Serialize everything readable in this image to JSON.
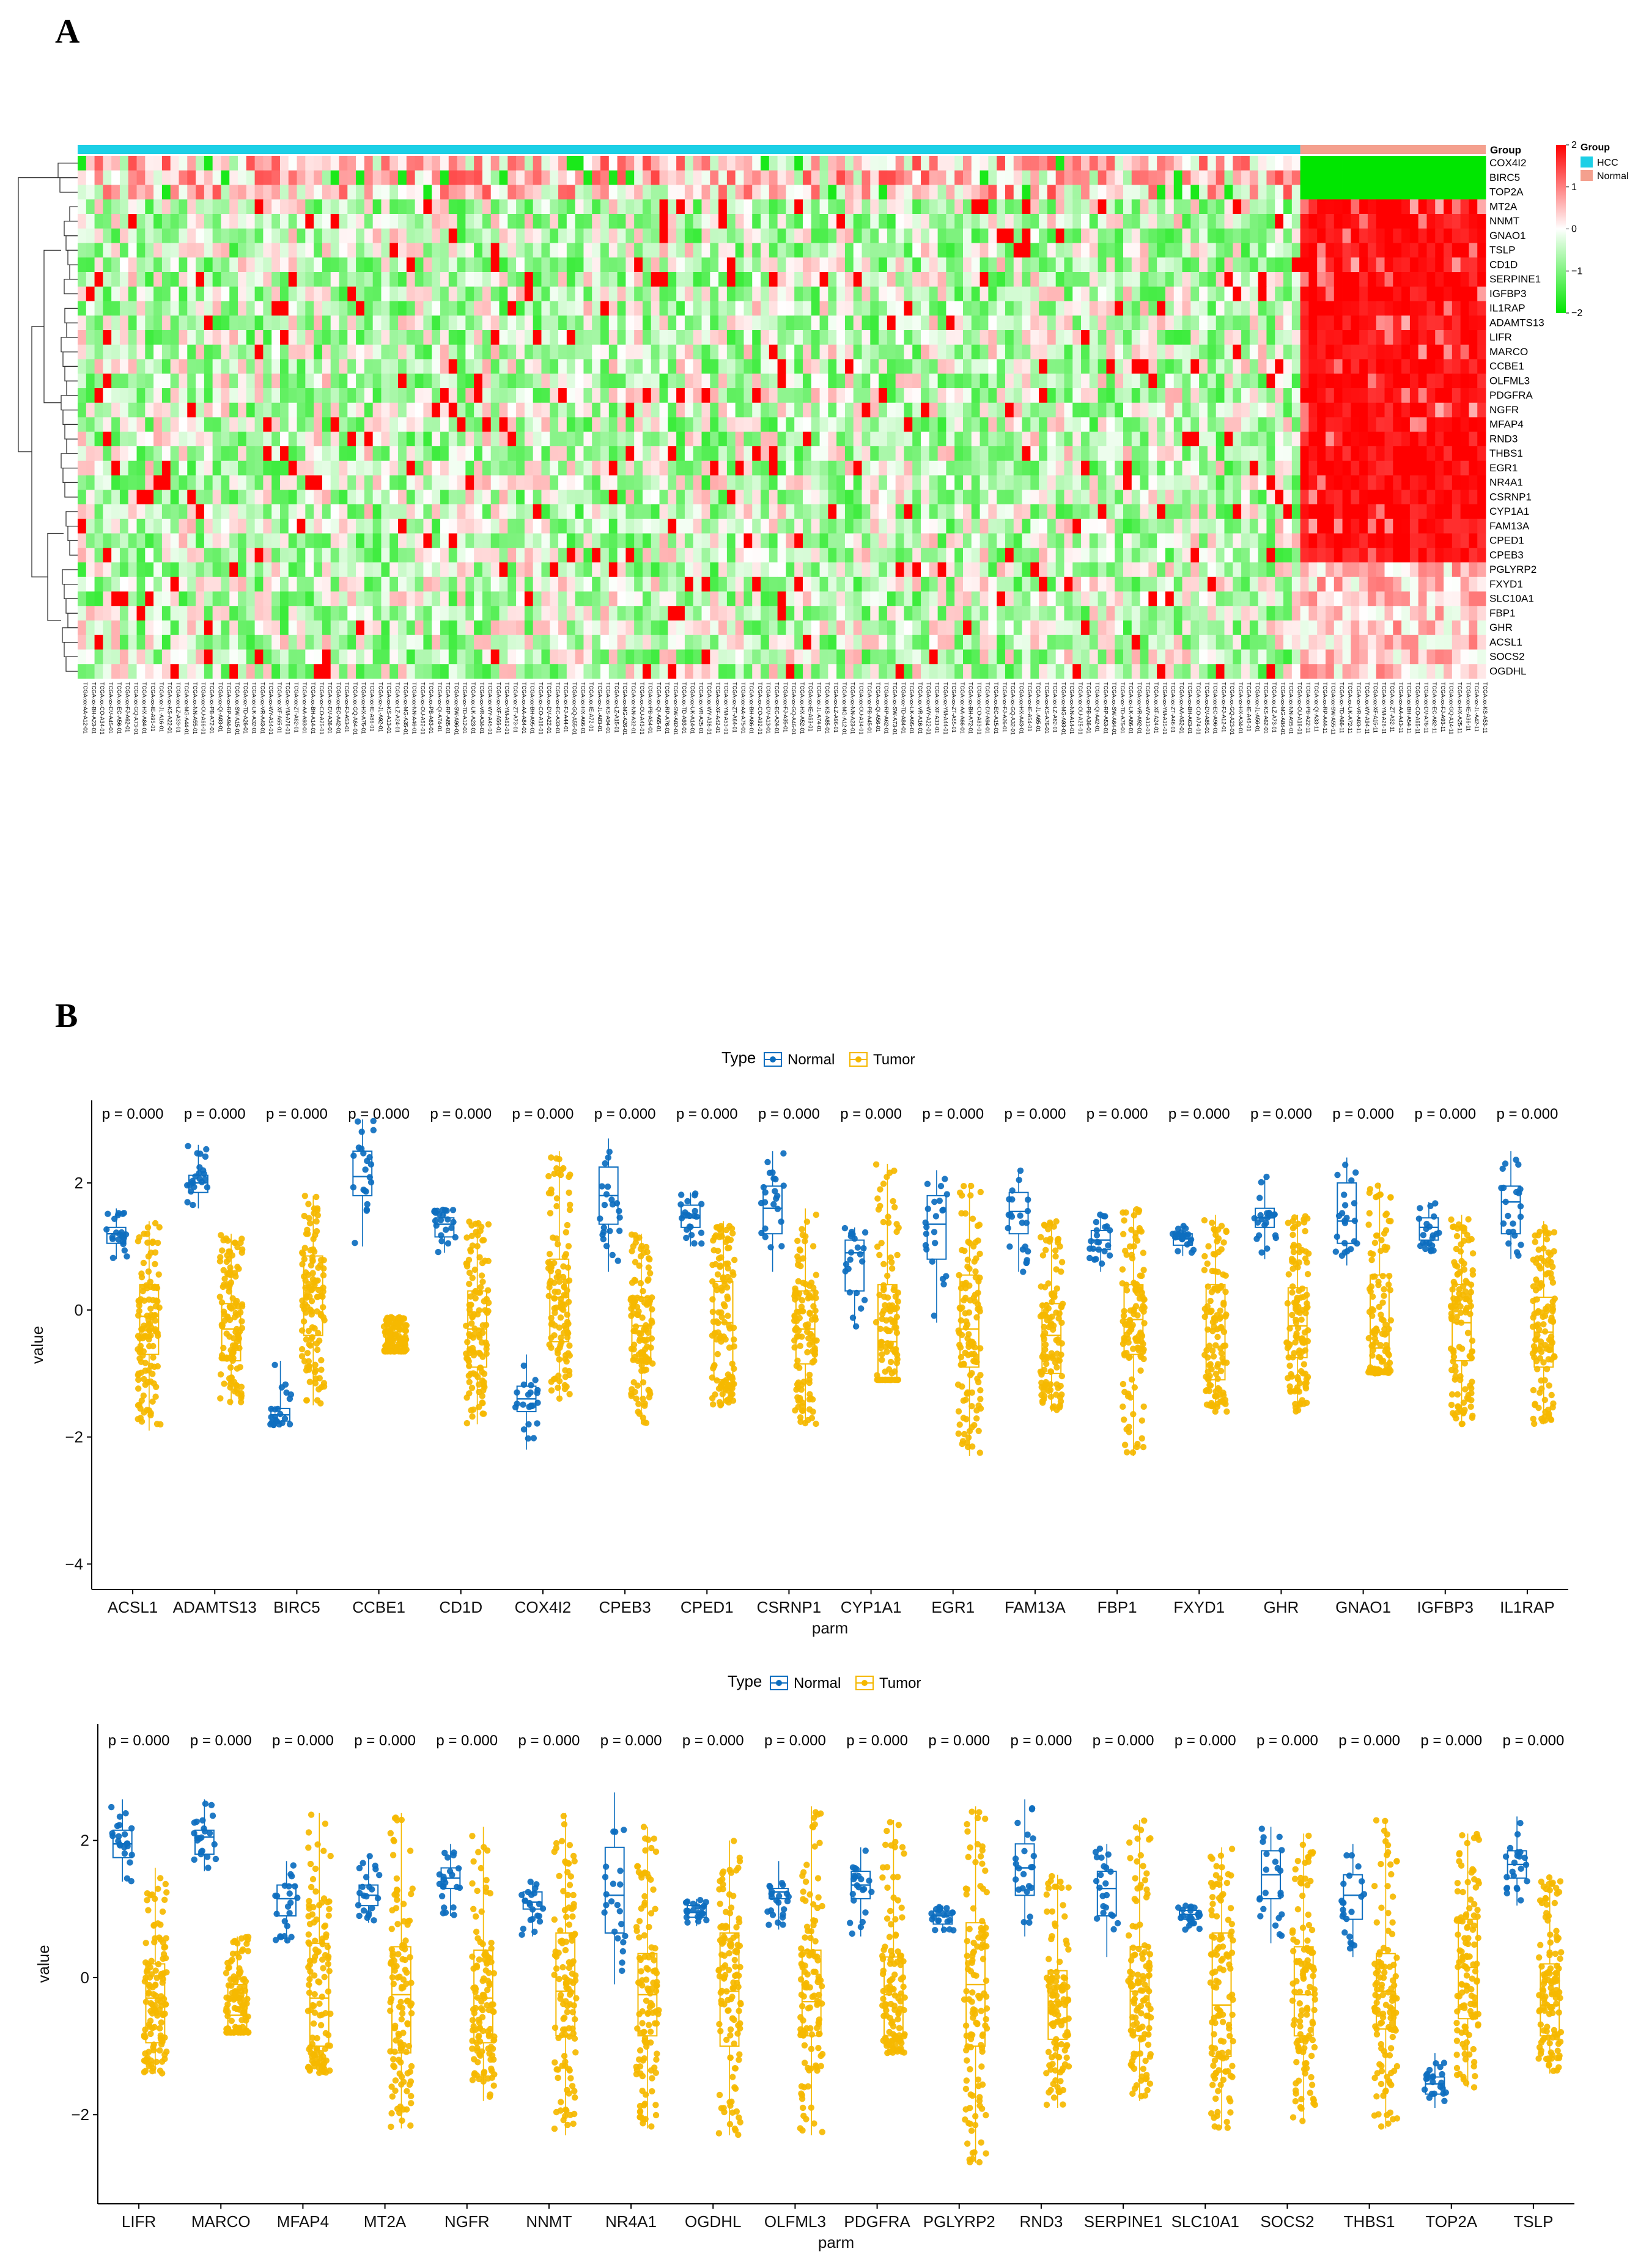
{
  "panels": {
    "a_label": "A",
    "b_label": "B"
  },
  "heatmap": {
    "genes": [
      "COX4I2",
      "BIRC5",
      "TOP2A",
      "MT2A",
      "NNMT",
      "GNAO1",
      "TSLP",
      "CD1D",
      "SERPINE1",
      "IGFBP3",
      "IL1RAP",
      "ADAMTS13",
      "LIFR",
      "MARCO",
      "CCBE1",
      "OLFML3",
      "PDGFRA",
      "NGFR",
      "MFAP4",
      "RND3",
      "THBS1",
      "EGR1",
      "NR4A1",
      "CSRNP1",
      "CYP1A1",
      "FAM13A",
      "CPED1",
      "CPEB3",
      "PGLYRP2",
      "FXYD1",
      "SLC10A1",
      "FBP1",
      "GHR",
      "ACSL1",
      "SOCS2",
      "OGDHL"
    ],
    "annotation_label": "Group",
    "group_legend_title": "Group",
    "groups": [
      {
        "name": "HCC",
        "color": "#1ccfe6"
      },
      {
        "name": "Normal",
        "color": "#f4a08e"
      }
    ],
    "n_tumor_columns": 145,
    "n_normal_columns": 22,
    "color_scale": {
      "min": -2,
      "max": 2,
      "ticks": [
        "2",
        "1",
        "0",
        "−1",
        "−2"
      ],
      "low": "#00e600",
      "mid": "#ffffff",
      "high": "#ff0000"
    },
    "sample_label_prefix": "TCGA-"
  },
  "chart_data": [
    {
      "type": "box",
      "legend_title": "Type",
      "legend_position": "top",
      "series": [
        {
          "name": "Normal",
          "color": "#0d6ebf"
        },
        {
          "name": "Tumor",
          "color": "#f5b800"
        }
      ],
      "xlabel": "parm",
      "ylabel": "value",
      "ylim": [
        -4.4,
        3.3
      ],
      "yticks": [
        -4,
        -2,
        0,
        2
      ],
      "pvalue_label": "p = 0.000",
      "categories": [
        "ACSL1",
        "ADAMTS13",
        "BIRC5",
        "CCBE1",
        "CD1D",
        "COX4I2",
        "CPEB3",
        "CPED1",
        "CSRNP1",
        "CYP1A1",
        "EGR1",
        "FAM13A",
        "FBP1",
        "FXYD1",
        "GHR",
        "GNAO1",
        "IGFBP3",
        "IL1RAP"
      ],
      "normal": [
        {
          "q1": 1.05,
          "med": 1.2,
          "q3": 1.3,
          "lo": 0.8,
          "hi": 1.6
        },
        {
          "q1": 1.85,
          "med": 2.0,
          "q3": 2.12,
          "lo": 1.6,
          "hi": 2.6
        },
        {
          "q1": -1.75,
          "med": -1.65,
          "q3": -1.55,
          "lo": -1.85,
          "hi": -0.8
        },
        {
          "q1": 1.8,
          "med": 2.1,
          "q3": 2.5,
          "lo": 1.0,
          "hi": 3.0
        },
        {
          "q1": 1.15,
          "med": 1.35,
          "q3": 1.45,
          "lo": 0.9,
          "hi": 1.6
        },
        {
          "q1": -1.6,
          "med": -1.4,
          "q3": -1.2,
          "lo": -2.2,
          "hi": -0.7
        },
        {
          "q1": 1.35,
          "med": 1.8,
          "q3": 2.25,
          "lo": 0.6,
          "hi": 2.7
        },
        {
          "q1": 1.3,
          "med": 1.45,
          "q3": 1.65,
          "lo": 1.0,
          "hi": 1.85
        },
        {
          "q1": 1.2,
          "med": 1.6,
          "q3": 1.95,
          "lo": 0.6,
          "hi": 2.5
        },
        {
          "q1": 0.3,
          "med": 0.9,
          "q3": 1.1,
          "lo": -0.3,
          "hi": 1.3
        },
        {
          "q1": 0.8,
          "med": 1.35,
          "q3": 1.8,
          "lo": -0.2,
          "hi": 2.2
        },
        {
          "q1": 1.2,
          "med": 1.55,
          "q3": 1.85,
          "lo": 0.6,
          "hi": 2.2
        },
        {
          "q1": 0.95,
          "med": 1.1,
          "q3": 1.25,
          "lo": 0.6,
          "hi": 1.55
        },
        {
          "q1": 1.02,
          "med": 1.12,
          "q3": 1.2,
          "lo": 0.85,
          "hi": 1.35
        },
        {
          "q1": 1.3,
          "med": 1.45,
          "q3": 1.6,
          "lo": 0.8,
          "hi": 2.1
        },
        {
          "q1": 1.05,
          "med": 1.4,
          "q3": 2.0,
          "lo": 0.7,
          "hi": 2.4
        },
        {
          "q1": 1.1,
          "med": 1.3,
          "q3": 1.45,
          "lo": 0.9,
          "hi": 1.7
        },
        {
          "q1": 1.2,
          "med": 1.7,
          "q3": 1.95,
          "lo": 0.8,
          "hi": 2.5
        }
      ],
      "tumor": [
        {
          "q1": -0.7,
          "med": -0.1,
          "q3": 0.4,
          "lo": -1.9,
          "hi": 1.4
        },
        {
          "q1": -0.8,
          "med": -0.3,
          "q3": 0.1,
          "lo": -1.5,
          "hi": 1.2
        },
        {
          "q1": -0.4,
          "med": 0.35,
          "q3": 0.85,
          "lo": -1.5,
          "hi": 1.8
        },
        {
          "q1": -0.65,
          "med": -0.45,
          "q3": -0.3,
          "lo": -0.65,
          "hi": -0.1
        },
        {
          "q1": -0.9,
          "med": -0.3,
          "q3": 0.3,
          "lo": -1.8,
          "hi": 1.4
        },
        {
          "q1": -0.5,
          "med": 0.2,
          "q3": 0.8,
          "lo": -1.4,
          "hi": 2.5
        },
        {
          "q1": -0.8,
          "med": -0.25,
          "q3": 0.2,
          "lo": -1.8,
          "hi": 1.2
        },
        {
          "q1": -1.1,
          "med": -0.2,
          "q3": 0.45,
          "lo": -1.5,
          "hi": 1.4
        },
        {
          "q1": -0.85,
          "med": -0.3,
          "q3": 0.3,
          "lo": -1.8,
          "hi": 1.6
        },
        {
          "q1": -1.1,
          "med": -0.5,
          "q3": 0.4,
          "lo": -1.1,
          "hi": 2.3
        },
        {
          "q1": -0.9,
          "med": -0.3,
          "q3": 0.55,
          "lo": -2.3,
          "hi": 2.0
        },
        {
          "q1": -1.0,
          "med": -0.4,
          "q3": 0.1,
          "lo": -1.6,
          "hi": 1.4
        },
        {
          "q1": -0.7,
          "med": -0.15,
          "q3": 0.4,
          "lo": -2.3,
          "hi": 1.6
        },
        {
          "q1": -1.1,
          "med": -0.3,
          "q3": 0.4,
          "lo": -1.6,
          "hi": 1.5
        },
        {
          "q1": -0.75,
          "med": -0.25,
          "q3": 0.35,
          "lo": -1.6,
          "hi": 1.5
        },
        {
          "q1": -0.95,
          "med": -0.6,
          "q3": 0.55,
          "lo": -1.0,
          "hi": 2.0
        },
        {
          "q1": -0.8,
          "med": -0.2,
          "q3": 0.4,
          "lo": -1.8,
          "hi": 1.5
        },
        {
          "q1": -0.9,
          "med": -0.35,
          "q3": 0.2,
          "lo": -1.8,
          "hi": 1.4
        }
      ]
    },
    {
      "type": "box",
      "legend_title": "Type",
      "legend_position": "top",
      "series": [
        {
          "name": "Normal",
          "color": "#0d6ebf"
        },
        {
          "name": "Tumor",
          "color": "#f5b800"
        }
      ],
      "xlabel": "parm",
      "ylabel": "value",
      "ylim": [
        -3.3,
        3.7
      ],
      "yticks": [
        -2,
        0,
        2
      ],
      "pvalue_label": "p = 0.000",
      "categories": [
        "LIFR",
        "MARCO",
        "MFAP4",
        "MT2A",
        "NGFR",
        "NNMT",
        "NR4A1",
        "OGDHL",
        "OLFML3",
        "PDGFRA",
        "PGLYRP2",
        "RND3",
        "SERPINE1",
        "SLC10A1",
        "SOCS2",
        "THBS1",
        "TOP2A",
        "TSLP"
      ],
      "normal": [
        {
          "q1": 1.75,
          "med": 1.95,
          "q3": 2.15,
          "lo": 1.4,
          "hi": 2.6
        },
        {
          "q1": 1.8,
          "med": 2.05,
          "q3": 2.15,
          "lo": 1.55,
          "hi": 2.6
        },
        {
          "q1": 0.9,
          "med": 1.15,
          "q3": 1.35,
          "lo": 0.5,
          "hi": 1.7
        },
        {
          "q1": 1.05,
          "med": 1.2,
          "q3": 1.35,
          "lo": 0.8,
          "hi": 1.8
        },
        {
          "q1": 1.3,
          "med": 1.45,
          "q3": 1.6,
          "lo": 0.9,
          "hi": 1.95
        },
        {
          "q1": 1.0,
          "med": 1.1,
          "q3": 1.25,
          "lo": 0.6,
          "hi": 1.4
        },
        {
          "q1": 0.65,
          "med": 1.2,
          "q3": 1.9,
          "lo": -0.1,
          "hi": 2.7
        },
        {
          "q1": 0.88,
          "med": 0.95,
          "q3": 1.05,
          "lo": 0.75,
          "hi": 1.15
        },
        {
          "q1": 1.15,
          "med": 1.25,
          "q3": 1.3,
          "lo": 0.7,
          "hi": 1.7
        },
        {
          "q1": 1.15,
          "med": 1.35,
          "q3": 1.55,
          "lo": 0.6,
          "hi": 1.9
        },
        {
          "q1": 0.78,
          "med": 0.9,
          "q3": 0.97,
          "lo": 0.65,
          "hi": 1.05
        },
        {
          "q1": 1.2,
          "med": 1.6,
          "q3": 1.95,
          "lo": 0.6,
          "hi": 2.6
        },
        {
          "q1": 0.9,
          "med": 1.3,
          "q3": 1.55,
          "lo": 0.3,
          "hi": 1.95
        },
        {
          "q1": 0.85,
          "med": 0.92,
          "q3": 0.98,
          "lo": 0.7,
          "hi": 1.05
        },
        {
          "q1": 1.15,
          "med": 1.5,
          "q3": 1.85,
          "lo": 0.5,
          "hi": 2.2
        },
        {
          "q1": 0.85,
          "med": 1.2,
          "q3": 1.5,
          "lo": 0.3,
          "hi": 1.95
        },
        {
          "q1": -1.7,
          "med": -1.55,
          "q3": -1.45,
          "lo": -1.9,
          "hi": -1.1
        },
        {
          "q1": 1.45,
          "med": 1.65,
          "q3": 1.85,
          "lo": 1.05,
          "hi": 2.35
        }
      ],
      "tumor": [
        {
          "q1": -0.95,
          "med": -0.3,
          "q3": 0.2,
          "lo": -1.4,
          "hi": 1.6
        },
        {
          "q1": -0.8,
          "med": -0.55,
          "q3": -0.1,
          "lo": -0.8,
          "hi": 0.6
        },
        {
          "q1": -1.0,
          "med": -0.3,
          "q3": 0.5,
          "lo": -1.4,
          "hi": 2.4
        },
        {
          "q1": -1.1,
          "med": -0.25,
          "q3": 0.45,
          "lo": -2.2,
          "hi": 2.4
        },
        {
          "q1": -0.95,
          "med": -0.3,
          "q3": 0.4,
          "lo": -1.8,
          "hi": 2.2
        },
        {
          "q1": -0.85,
          "med": -0.2,
          "q3": 0.65,
          "lo": -2.3,
          "hi": 2.4
        },
        {
          "q1": -0.85,
          "med": -0.25,
          "q3": 0.35,
          "lo": -2.2,
          "hi": 2.2
        },
        {
          "q1": -1.0,
          "med": -0.2,
          "q3": 0.65,
          "lo": -2.3,
          "hi": 2.0
        },
        {
          "q1": -0.85,
          "med": -0.35,
          "q3": 0.4,
          "lo": -2.3,
          "hi": 2.5
        },
        {
          "q1": -0.85,
          "med": -0.25,
          "q3": 0.3,
          "lo": -1.1,
          "hi": 2.3
        },
        {
          "q1": -1.0,
          "med": -0.1,
          "q3": 0.8,
          "lo": -2.7,
          "hi": 2.5
        },
        {
          "q1": -0.9,
          "med": -0.35,
          "q3": 0.1,
          "lo": -1.9,
          "hi": 1.5
        },
        {
          "q1": -0.85,
          "med": -0.2,
          "q3": 0.45,
          "lo": -1.8,
          "hi": 2.3
        },
        {
          "q1": -1.15,
          "med": -0.4,
          "q3": 0.65,
          "lo": -2.2,
          "hi": 1.9
        },
        {
          "q1": -0.85,
          "med": -0.25,
          "q3": 0.45,
          "lo": -2.1,
          "hi": 2.1
        },
        {
          "q1": -0.75,
          "med": -0.2,
          "q3": 0.35,
          "lo": -2.2,
          "hi": 2.3
        },
        {
          "q1": -0.6,
          "med": 0.15,
          "q3": 0.85,
          "lo": -1.6,
          "hi": 2.1
        },
        {
          "q1": -0.85,
          "med": -0.4,
          "q3": 0.2,
          "lo": -1.4,
          "hi": 1.5
        }
      ]
    }
  ]
}
